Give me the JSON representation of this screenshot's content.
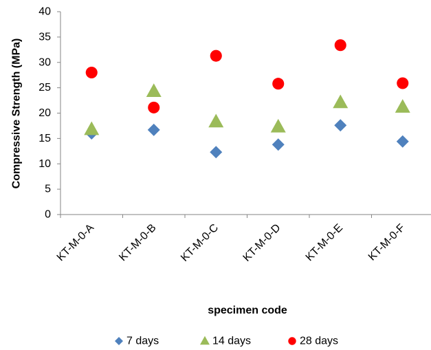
{
  "chart_data": {
    "type": "scatter",
    "categories": [
      "KT-M-0-A",
      "KT-M-0-B",
      "KT-M-0-C",
      "KT-M-0-D",
      "KT-M-0-E",
      "KT-M-0-F"
    ],
    "series": [
      {
        "name": "7 days",
        "values": [
          16.0,
          16.7,
          12.3,
          13.8,
          17.6,
          14.4
        ],
        "marker": "diamond",
        "color": "#4F81BD"
      },
      {
        "name": "14 days",
        "values": [
          16.8,
          24.3,
          18.3,
          17.3,
          22.1,
          21.2
        ],
        "marker": "triangle",
        "color": "#9BBB59"
      },
      {
        "name": "28 days",
        "values": [
          28.0,
          21.1,
          31.3,
          25.8,
          33.4,
          25.9
        ],
        "marker": "circle",
        "color": "#FF0000"
      }
    ],
    "xlabel": "specimen code",
    "ylabel": "Compressive Strength (MPa)",
    "ylim": [
      0,
      40
    ],
    "yticks": [
      0,
      5,
      10,
      15,
      20,
      25,
      30,
      35,
      40
    ],
    "grid": false,
    "legend_position": "bottom"
  }
}
